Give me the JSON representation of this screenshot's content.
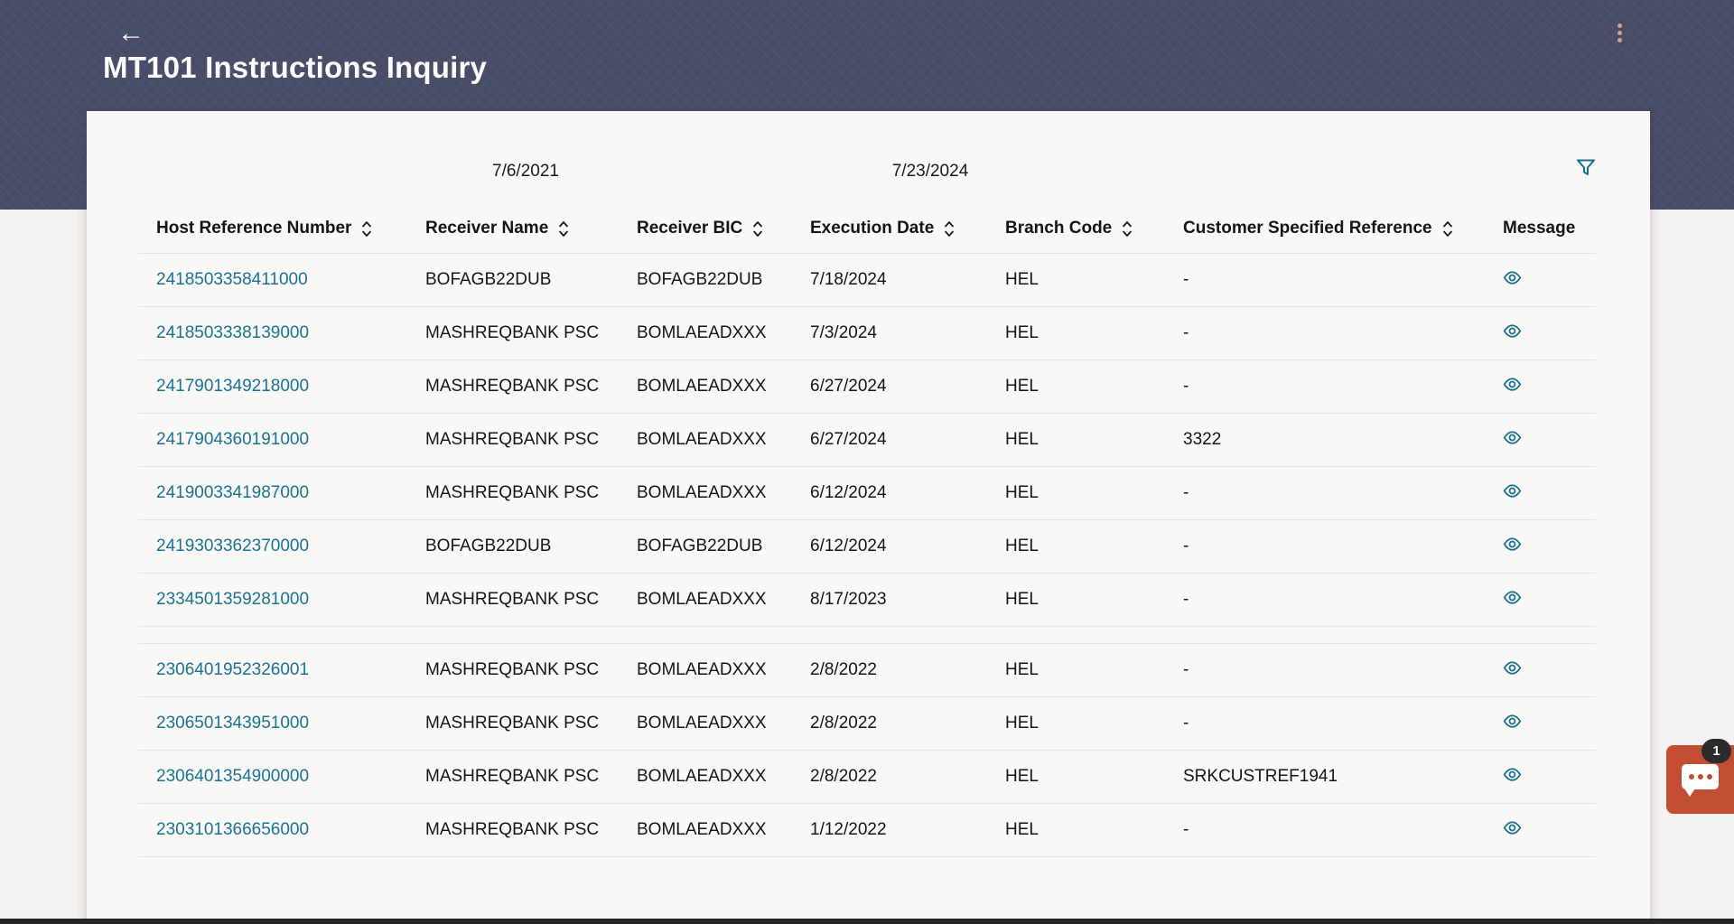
{
  "header": {
    "title": "MT101 Instructions Inquiry",
    "back_icon": "arrow-left",
    "menu_icon": "kebab-vertical"
  },
  "toolbar": {
    "from_date": "7/6/2021",
    "to_date": "7/23/2024",
    "filter_icon": "funnel"
  },
  "table": {
    "columns": [
      {
        "key": "host_ref",
        "label": "Host Reference Number",
        "sortable": true
      },
      {
        "key": "receiver_name",
        "label": "Receiver Name",
        "sortable": true
      },
      {
        "key": "receiver_bic",
        "label": "Receiver BIC",
        "sortable": true
      },
      {
        "key": "execution_date",
        "label": "Execution Date",
        "sortable": true
      },
      {
        "key": "branch_code",
        "label": "Branch Code",
        "sortable": true
      },
      {
        "key": "customer_ref",
        "label": "Customer Specified Reference",
        "sortable": true
      },
      {
        "key": "message",
        "label": "Message",
        "sortable": false
      }
    ],
    "rows": [
      {
        "host_ref": "2418503358411000",
        "receiver_name": "BOFAGB22DUB",
        "receiver_bic": "BOFAGB22DUB",
        "execution_date": "7/18/2024",
        "branch_code": "HEL",
        "customer_ref": "-",
        "gap_after": false
      },
      {
        "host_ref": "2418503338139000",
        "receiver_name": "MASHREQBANK PSC",
        "receiver_bic": "BOMLAEADXXX",
        "execution_date": "7/3/2024",
        "branch_code": "HEL",
        "customer_ref": "-",
        "gap_after": false
      },
      {
        "host_ref": "2417901349218000",
        "receiver_name": "MASHREQBANK PSC",
        "receiver_bic": "BOMLAEADXXX",
        "execution_date": "6/27/2024",
        "branch_code": "HEL",
        "customer_ref": "-",
        "gap_after": false
      },
      {
        "host_ref": "2417904360191000",
        "receiver_name": "MASHREQBANK PSC",
        "receiver_bic": "BOMLAEADXXX",
        "execution_date": "6/27/2024",
        "branch_code": "HEL",
        "customer_ref": "3322",
        "gap_after": false
      },
      {
        "host_ref": "2419003341987000",
        "receiver_name": "MASHREQBANK PSC",
        "receiver_bic": "BOMLAEADXXX",
        "execution_date": "6/12/2024",
        "branch_code": "HEL",
        "customer_ref": "-",
        "gap_after": false
      },
      {
        "host_ref": "2419303362370000",
        "receiver_name": "BOFAGB22DUB",
        "receiver_bic": "BOFAGB22DUB",
        "execution_date": "6/12/2024",
        "branch_code": "HEL",
        "customer_ref": "-",
        "gap_after": false
      },
      {
        "host_ref": "2334501359281000",
        "receiver_name": "MASHREQBANK PSC",
        "receiver_bic": "BOMLAEADXXX",
        "execution_date": "8/17/2023",
        "branch_code": "HEL",
        "customer_ref": "-",
        "gap_after": true
      },
      {
        "host_ref": "2306401952326001",
        "receiver_name": "MASHREQBANK PSC",
        "receiver_bic": "BOMLAEADXXX",
        "execution_date": "2/8/2022",
        "branch_code": "HEL",
        "customer_ref": "-",
        "gap_after": false
      },
      {
        "host_ref": "2306501343951000",
        "receiver_name": "MASHREQBANK PSC",
        "receiver_bic": "BOMLAEADXXX",
        "execution_date": "2/8/2022",
        "branch_code": "HEL",
        "customer_ref": "-",
        "gap_after": false
      },
      {
        "host_ref": "2306401354900000",
        "receiver_name": "MASHREQBANK PSC",
        "receiver_bic": "BOMLAEADXXX",
        "execution_date": "2/8/2022",
        "branch_code": "HEL",
        "customer_ref": "SRKCUSTREF1941",
        "gap_after": false
      },
      {
        "host_ref": "2303101366656000",
        "receiver_name": "MASHREQBANK PSC",
        "receiver_bic": "BOMLAEADXXX",
        "execution_date": "1/12/2022",
        "branch_code": "HEL",
        "customer_ref": "-",
        "gap_after": false
      }
    ],
    "message_icon": "eye"
  },
  "chat": {
    "badge": "1",
    "icon": "chat-bubble"
  },
  "colors": {
    "band": "#494D68",
    "link": "#1A7390",
    "icon_teal": "#19708E",
    "chat_red": "#C14D33",
    "kebab_dot": "#D2A284"
  }
}
